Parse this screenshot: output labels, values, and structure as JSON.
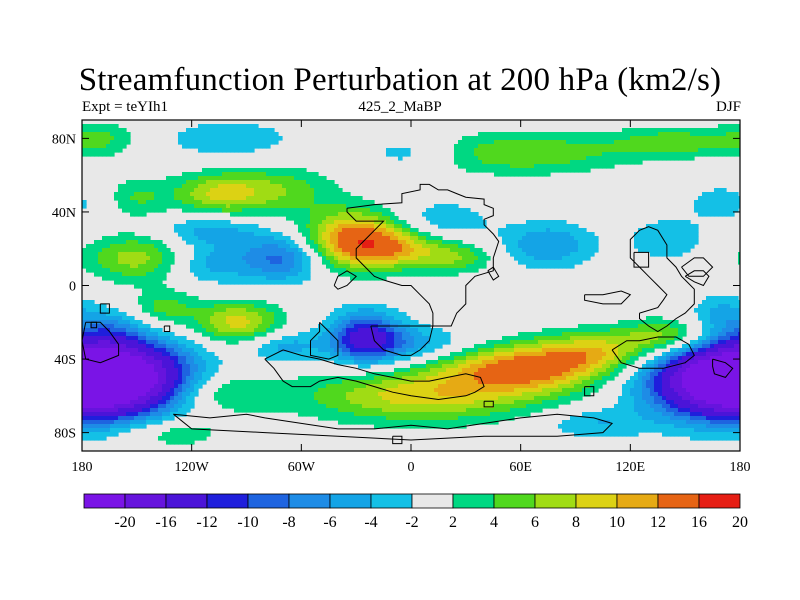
{
  "chart_data": {
    "type": "heatmap",
    "title": "Streamfunction Perturbation at 200 hPa (km2/s)",
    "left_string": "Expt = teYIh1",
    "center_string": "425_2_MaBP",
    "right_string": "DJF",
    "x_ticks": [
      {
        "value": -180,
        "label": "180"
      },
      {
        "value": -120,
        "label": "120W"
      },
      {
        "value": -60,
        "label": "60W"
      },
      {
        "value": 0,
        "label": "0"
      },
      {
        "value": 60,
        "label": "60E"
      },
      {
        "value": 120,
        "label": "120E"
      },
      {
        "value": 180,
        "label": "180"
      }
    ],
    "y_ticks": [
      {
        "value": 80,
        "label": "80N"
      },
      {
        "value": 40,
        "label": "40N"
      },
      {
        "value": 0,
        "label": "0"
      },
      {
        "value": -40,
        "label": "40S"
      },
      {
        "value": -80,
        "label": "80S"
      }
    ],
    "xlim": [
      -180,
      180
    ],
    "ylim": [
      -90,
      90
    ],
    "levels": [
      -20,
      -16,
      -12,
      -10,
      -8,
      -6,
      -4,
      -2,
      2,
      4,
      6,
      8,
      10,
      12,
      16,
      20
    ],
    "level_labels": [
      "-20",
      "-16",
      "-12",
      "-10",
      "-8",
      "-6",
      "-4",
      "-2",
      "2",
      "4",
      "6",
      "8",
      "10",
      "12",
      "16",
      "20"
    ],
    "colors": [
      "#7a14e6",
      "#6614dd",
      "#4b14d8",
      "#1f1fdc",
      "#1e64e0",
      "#1e8ce6",
      "#14a4e6",
      "#14c0e6",
      "#e8e8e8",
      "#00d882",
      "#50d81e",
      "#a0dc14",
      "#dcd214",
      "#e6aa14",
      "#e66414",
      "#e61e14"
    ],
    "anomalies": [
      {
        "lon": -160,
        "lat": -50,
        "amp": -23,
        "sx": 28,
        "sy": 14
      },
      {
        "lon": 168,
        "lat": -52,
        "amp": -21,
        "sx": 28,
        "sy": 14
      },
      {
        "lon": 60,
        "lat": -45,
        "amp": 13,
        "sx": 30,
        "sy": 9
      },
      {
        "lon": 5,
        "lat": -60,
        "amp": 9,
        "sx": 45,
        "sy": 10
      },
      {
        "lon": 100,
        "lat": -36,
        "amp": 8,
        "sx": 22,
        "sy": 8
      },
      {
        "lon": 140,
        "lat": -28,
        "amp": 8,
        "sx": 18,
        "sy": 7
      },
      {
        "lon": -105,
        "lat": -58,
        "amp": 5,
        "sx": 20,
        "sy": 8
      },
      {
        "lon": -25,
        "lat": -28,
        "amp": -12,
        "sx": 14,
        "sy": 10
      },
      {
        "lon": 0,
        "lat": -32,
        "amp": -5,
        "sx": 26,
        "sy": 7
      },
      {
        "lon": -70,
        "lat": -33,
        "amp": -5,
        "sx": 14,
        "sy": 6
      },
      {
        "lon": -30,
        "lat": 25,
        "amp": 14,
        "sx": 20,
        "sy": 11
      },
      {
        "lon": -5,
        "lat": 20,
        "amp": 6,
        "sx": 20,
        "sy": 7
      },
      {
        "lon": 25,
        "lat": 15,
        "amp": 5,
        "sx": 15,
        "sy": 6
      },
      {
        "lon": -95,
        "lat": -20,
        "amp": 9,
        "sx": 17,
        "sy": 8
      },
      {
        "lon": -135,
        "lat": -12,
        "amp": 5,
        "sx": 12,
        "sy": 7
      },
      {
        "lon": -150,
        "lat": 15,
        "amp": 7,
        "sx": 20,
        "sy": 9
      },
      {
        "lon": -105,
        "lat": 50,
        "amp": 8,
        "sx": 18,
        "sy": 8
      },
      {
        "lon": -70,
        "lat": 52,
        "amp": 5,
        "sx": 20,
        "sy": 9
      },
      {
        "lon": -150,
        "lat": 48,
        "amp": 4,
        "sx": 12,
        "sy": 8
      },
      {
        "lon": -70,
        "lat": 15,
        "amp": -9,
        "sx": 16,
        "sy": 9
      },
      {
        "lon": -110,
        "lat": 12,
        "amp": -5,
        "sx": 16,
        "sy": 8
      },
      {
        "lon": 75,
        "lat": 22,
        "amp": -6,
        "sx": 18,
        "sy": 9
      },
      {
        "lon": 140,
        "lat": 25,
        "amp": -4,
        "sx": 15,
        "sy": 8
      },
      {
        "lon": 15,
        "lat": 35,
        "amp": -4,
        "sx": 20,
        "sy": 8
      },
      {
        "lon": -110,
        "lat": 30,
        "amp": -5,
        "sx": 20,
        "sy": 6
      },
      {
        "lon": 60,
        "lat": 72,
        "amp": 6,
        "sx": 40,
        "sy": 8
      },
      {
        "lon": 145,
        "lat": 78,
        "amp": 5,
        "sx": 25,
        "sy": 6
      },
      {
        "lon": -170,
        "lat": 80,
        "amp": 4,
        "sx": 15,
        "sy": 7
      },
      {
        "lon": -100,
        "lat": 80,
        "amp": -4,
        "sx": 25,
        "sy": 7
      },
      {
        "lon": 0,
        "lat": 72,
        "amp": -4,
        "sx": 20,
        "sy": 6
      },
      {
        "lon": 170,
        "lat": 45,
        "amp": -3,
        "sx": 15,
        "sy": 8
      },
      {
        "lon": -165,
        "lat": -25,
        "amp": -4,
        "sx": 12,
        "sy": 8
      },
      {
        "lon": 170,
        "lat": -15,
        "amp": -4,
        "sx": 12,
        "sy": 8
      },
      {
        "lon": -130,
        "lat": -80,
        "amp": 4,
        "sx": 20,
        "sy": 6
      },
      {
        "lon": 100,
        "lat": -75,
        "amp": -4,
        "sx": 20,
        "sy": 6
      }
    ],
    "coastlines": [
      [
        [
          -35,
          42
        ],
        [
          -20,
          44
        ],
        [
          -5,
          45
        ],
        [
          -5,
          50
        ],
        [
          5,
          52
        ],
        [
          5,
          55
        ],
        [
          10,
          55
        ],
        [
          15,
          52
        ],
        [
          20,
          52
        ],
        [
          25,
          50
        ],
        [
          30,
          48
        ],
        [
          40,
          47
        ],
        [
          40,
          44
        ],
        [
          45,
          42
        ],
        [
          45,
          38
        ],
        [
          40,
          36
        ],
        [
          40,
          33
        ],
        [
          45,
          28
        ],
        [
          48,
          24
        ],
        [
          45,
          15
        ],
        [
          45,
          8
        ],
        [
          35,
          5
        ],
        [
          30,
          0
        ],
        [
          30,
          -10
        ],
        [
          25,
          -15
        ],
        [
          22,
          -22
        ],
        [
          12,
          -22
        ],
        [
          12,
          -15
        ],
        [
          10,
          -10
        ],
        [
          5,
          -5
        ],
        [
          0,
          0
        ],
        [
          -5,
          0
        ],
        [
          -15,
          3
        ],
        [
          -20,
          5
        ],
        [
          -25,
          10
        ],
        [
          -30,
          15
        ],
        [
          -30,
          20
        ],
        [
          -25,
          25
        ],
        [
          -20,
          30
        ],
        [
          -15,
          35
        ],
        [
          -30,
          35
        ],
        [
          -35,
          40
        ],
        [
          -35,
          42
        ]
      ],
      [
        [
          -22,
          -22
        ],
        [
          -20,
          -30
        ],
        [
          -15,
          -35
        ],
        [
          -5,
          -38
        ],
        [
          0,
          -38
        ],
        [
          5,
          -35
        ],
        [
          10,
          -30
        ],
        [
          12,
          -22
        ],
        [
          -22,
          -22
        ]
      ],
      [
        [
          -50,
          -20
        ],
        [
          -45,
          -25
        ],
        [
          -40,
          -30
        ],
        [
          -40,
          -38
        ],
        [
          -45,
          -40
        ],
        [
          -55,
          -38
        ],
        [
          -55,
          -30
        ],
        [
          -50,
          -25
        ],
        [
          -50,
          -20
        ]
      ],
      [
        [
          -42,
          0
        ],
        [
          -40,
          5
        ],
        [
          -35,
          8
        ],
        [
          -30,
          5
        ],
        [
          -35,
          0
        ],
        [
          -40,
          -2
        ],
        [
          -42,
          0
        ]
      ],
      [
        [
          42,
          8
        ],
        [
          45,
          3
        ],
        [
          48,
          5
        ],
        [
          45,
          10
        ],
        [
          42,
          8
        ]
      ],
      [
        [
          122,
          18
        ],
        [
          130,
          18
        ],
        [
          130,
          10
        ],
        [
          122,
          10
        ],
        [
          122,
          18
        ]
      ],
      [
        [
          95,
          -5
        ],
        [
          105,
          -5
        ],
        [
          115,
          -3
        ],
        [
          120,
          -5
        ],
        [
          115,
          -10
        ],
        [
          105,
          -10
        ],
        [
          95,
          -8
        ],
        [
          95,
          -5
        ]
      ],
      [
        [
          125,
          -15
        ],
        [
          135,
          -12
        ],
        [
          138,
          -8
        ],
        [
          140,
          -5
        ],
        [
          135,
          0
        ],
        [
          130,
          5
        ],
        [
          125,
          10
        ],
        [
          120,
          15
        ],
        [
          120,
          25
        ],
        [
          125,
          30
        ],
        [
          130,
          32
        ],
        [
          135,
          30
        ],
        [
          140,
          22
        ],
        [
          140,
          15
        ],
        [
          145,
          10
        ],
        [
          148,
          5
        ],
        [
          150,
          3
        ],
        [
          155,
          -2
        ],
        [
          155,
          -10
        ],
        [
          150,
          -15
        ],
        [
          145,
          -18
        ],
        [
          140,
          -22
        ],
        [
          135,
          -25
        ],
        [
          130,
          -22
        ],
        [
          125,
          -18
        ],
        [
          125,
          -15
        ]
      ],
      [
        [
          150,
          5
        ],
        [
          155,
          8
        ],
        [
          160,
          8
        ],
        [
          163,
          5
        ],
        [
          160,
          0
        ],
        [
          155,
          2
        ],
        [
          150,
          5
        ]
      ],
      [
        [
          148,
          10
        ],
        [
          155,
          15
        ],
        [
          160,
          15
        ],
        [
          165,
          10
        ],
        [
          160,
          5
        ],
        [
          152,
          5
        ],
        [
          148,
          10
        ]
      ],
      [
        [
          110,
          -35
        ],
        [
          115,
          -42
        ],
        [
          125,
          -45
        ],
        [
          138,
          -45
        ],
        [
          150,
          -42
        ],
        [
          155,
          -38
        ],
        [
          152,
          -32
        ],
        [
          145,
          -28
        ],
        [
          135,
          -28
        ],
        [
          125,
          -30
        ],
        [
          118,
          -30
        ],
        [
          110,
          -35
        ]
      ],
      [
        [
          165,
          -40
        ],
        [
          172,
          -42
        ],
        [
          176,
          -45
        ],
        [
          172,
          -50
        ],
        [
          166,
          -48
        ],
        [
          165,
          -44
        ],
        [
          165,
          -40
        ]
      ],
      [
        [
          -170,
          -10
        ],
        [
          -165,
          -10
        ],
        [
          -165,
          -15
        ],
        [
          -170,
          -15
        ],
        [
          -170,
          -10
        ]
      ],
      [
        [
          -175,
          -20
        ],
        [
          -172,
          -20
        ],
        [
          -172,
          -23
        ],
        [
          -175,
          -23
        ],
        [
          -175,
          -20
        ]
      ],
      [
        [
          -135,
          -22
        ],
        [
          -132,
          -22
        ],
        [
          -132,
          -25
        ],
        [
          -135,
          -25
        ],
        [
          -135,
          -22
        ]
      ],
      [
        [
          -80,
          -40
        ],
        [
          -75,
          -45
        ],
        [
          -70,
          -52
        ],
        [
          -65,
          -55
        ],
        [
          -55,
          -55
        ],
        [
          -50,
          -52
        ],
        [
          -40,
          -50
        ],
        [
          -30,
          -52
        ],
        [
          -20,
          -55
        ],
        [
          -10,
          -58
        ],
        [
          0,
          -60
        ],
        [
          15,
          -62
        ],
        [
          30,
          -60
        ],
        [
          35,
          -58
        ],
        [
          40,
          -55
        ],
        [
          38,
          -50
        ],
        [
          30,
          -48
        ],
        [
          20,
          -50
        ],
        [
          10,
          -52
        ],
        [
          0,
          -52
        ],
        [
          -10,
          -50
        ],
        [
          -20,
          -48
        ],
        [
          -30,
          -45
        ],
        [
          -40,
          -43
        ],
        [
          -50,
          -40
        ],
        [
          -60,
          -38
        ],
        [
          -70,
          -35
        ],
        [
          -80,
          -40
        ]
      ],
      [
        [
          -130,
          -70
        ],
        [
          -110,
          -72
        ],
        [
          -90,
          -70
        ],
        [
          -80,
          -72
        ],
        [
          -60,
          -75
        ],
        [
          -40,
          -78
        ],
        [
          -20,
          -78
        ],
        [
          0,
          -76
        ],
        [
          20,
          -78
        ],
        [
          40,
          -75
        ],
        [
          60,
          -72
        ],
        [
          80,
          -70
        ],
        [
          100,
          -72
        ],
        [
          110,
          -75
        ],
        [
          105,
          -80
        ],
        [
          80,
          -82
        ],
        [
          40,
          -82
        ],
        [
          0,
          -84
        ],
        [
          -40,
          -82
        ],
        [
          -80,
          -80
        ],
        [
          -120,
          -78
        ],
        [
          -130,
          -70
        ]
      ],
      [
        [
          -10,
          -82
        ],
        [
          -5,
          -82
        ],
        [
          -5,
          -86
        ],
        [
          -10,
          -86
        ],
        [
          -10,
          -82
        ]
      ],
      [
        [
          95,
          -55
        ],
        [
          100,
          -55
        ],
        [
          100,
          -60
        ],
        [
          95,
          -60
        ],
        [
          95,
          -55
        ]
      ],
      [
        [
          40,
          -63
        ],
        [
          45,
          -63
        ],
        [
          45,
          -66
        ],
        [
          40,
          -66
        ],
        [
          40,
          -63
        ]
      ],
      [
        [
          -178,
          -20
        ],
        [
          -170,
          -20
        ],
        [
          -165,
          -25
        ],
        [
          -160,
          -32
        ],
        [
          -160,
          -38
        ],
        [
          -170,
          -42
        ],
        [
          -178,
          -40
        ],
        [
          -180,
          -30
        ],
        [
          -178,
          -20
        ]
      ]
    ]
  }
}
